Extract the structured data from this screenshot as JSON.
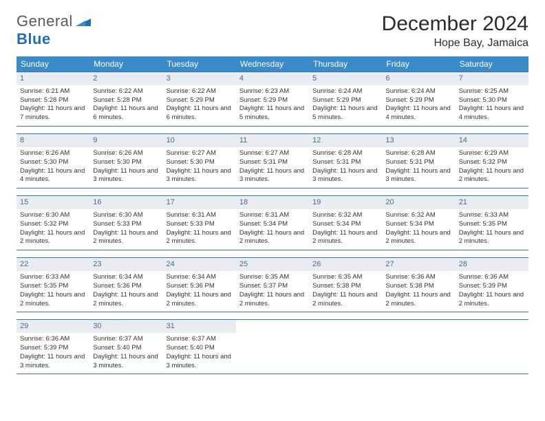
{
  "logo": {
    "word1": "General",
    "word2": "Blue"
  },
  "title": "December 2024",
  "location": "Hope Bay, Jamaica",
  "colors": {
    "header_bg": "#3a8bc9",
    "header_text": "#ffffff",
    "daynum_bg": "#e9edf1",
    "daynum_text": "#4a6a8a",
    "week_border": "#3a6ea5",
    "logo_gray": "#5a5a5a",
    "logo_blue": "#1f6fb2"
  },
  "days_of_week": [
    "Sunday",
    "Monday",
    "Tuesday",
    "Wednesday",
    "Thursday",
    "Friday",
    "Saturday"
  ],
  "weeks": [
    [
      {
        "n": "1",
        "sunrise": "Sunrise: 6:21 AM",
        "sunset": "Sunset: 5:28 PM",
        "daylight": "Daylight: 11 hours and 7 minutes."
      },
      {
        "n": "2",
        "sunrise": "Sunrise: 6:22 AM",
        "sunset": "Sunset: 5:28 PM",
        "daylight": "Daylight: 11 hours and 6 minutes."
      },
      {
        "n": "3",
        "sunrise": "Sunrise: 6:22 AM",
        "sunset": "Sunset: 5:29 PM",
        "daylight": "Daylight: 11 hours and 6 minutes."
      },
      {
        "n": "4",
        "sunrise": "Sunrise: 6:23 AM",
        "sunset": "Sunset: 5:29 PM",
        "daylight": "Daylight: 11 hours and 5 minutes."
      },
      {
        "n": "5",
        "sunrise": "Sunrise: 6:24 AM",
        "sunset": "Sunset: 5:29 PM",
        "daylight": "Daylight: 11 hours and 5 minutes."
      },
      {
        "n": "6",
        "sunrise": "Sunrise: 6:24 AM",
        "sunset": "Sunset: 5:29 PM",
        "daylight": "Daylight: 11 hours and 4 minutes."
      },
      {
        "n": "7",
        "sunrise": "Sunrise: 6:25 AM",
        "sunset": "Sunset: 5:30 PM",
        "daylight": "Daylight: 11 hours and 4 minutes."
      }
    ],
    [
      {
        "n": "8",
        "sunrise": "Sunrise: 6:26 AM",
        "sunset": "Sunset: 5:30 PM",
        "daylight": "Daylight: 11 hours and 4 minutes."
      },
      {
        "n": "9",
        "sunrise": "Sunrise: 6:26 AM",
        "sunset": "Sunset: 5:30 PM",
        "daylight": "Daylight: 11 hours and 3 minutes."
      },
      {
        "n": "10",
        "sunrise": "Sunrise: 6:27 AM",
        "sunset": "Sunset: 5:30 PM",
        "daylight": "Daylight: 11 hours and 3 minutes."
      },
      {
        "n": "11",
        "sunrise": "Sunrise: 6:27 AM",
        "sunset": "Sunset: 5:31 PM",
        "daylight": "Daylight: 11 hours and 3 minutes."
      },
      {
        "n": "12",
        "sunrise": "Sunrise: 6:28 AM",
        "sunset": "Sunset: 5:31 PM",
        "daylight": "Daylight: 11 hours and 3 minutes."
      },
      {
        "n": "13",
        "sunrise": "Sunrise: 6:28 AM",
        "sunset": "Sunset: 5:31 PM",
        "daylight": "Daylight: 11 hours and 3 minutes."
      },
      {
        "n": "14",
        "sunrise": "Sunrise: 6:29 AM",
        "sunset": "Sunset: 5:32 PM",
        "daylight": "Daylight: 11 hours and 2 minutes."
      }
    ],
    [
      {
        "n": "15",
        "sunrise": "Sunrise: 6:30 AM",
        "sunset": "Sunset: 5:32 PM",
        "daylight": "Daylight: 11 hours and 2 minutes."
      },
      {
        "n": "16",
        "sunrise": "Sunrise: 6:30 AM",
        "sunset": "Sunset: 5:33 PM",
        "daylight": "Daylight: 11 hours and 2 minutes."
      },
      {
        "n": "17",
        "sunrise": "Sunrise: 6:31 AM",
        "sunset": "Sunset: 5:33 PM",
        "daylight": "Daylight: 11 hours and 2 minutes."
      },
      {
        "n": "18",
        "sunrise": "Sunrise: 6:31 AM",
        "sunset": "Sunset: 5:34 PM",
        "daylight": "Daylight: 11 hours and 2 minutes."
      },
      {
        "n": "19",
        "sunrise": "Sunrise: 6:32 AM",
        "sunset": "Sunset: 5:34 PM",
        "daylight": "Daylight: 11 hours and 2 minutes."
      },
      {
        "n": "20",
        "sunrise": "Sunrise: 6:32 AM",
        "sunset": "Sunset: 5:34 PM",
        "daylight": "Daylight: 11 hours and 2 minutes."
      },
      {
        "n": "21",
        "sunrise": "Sunrise: 6:33 AM",
        "sunset": "Sunset: 5:35 PM",
        "daylight": "Daylight: 11 hours and 2 minutes."
      }
    ],
    [
      {
        "n": "22",
        "sunrise": "Sunrise: 6:33 AM",
        "sunset": "Sunset: 5:35 PM",
        "daylight": "Daylight: 11 hours and 2 minutes."
      },
      {
        "n": "23",
        "sunrise": "Sunrise: 6:34 AM",
        "sunset": "Sunset: 5:36 PM",
        "daylight": "Daylight: 11 hours and 2 minutes."
      },
      {
        "n": "24",
        "sunrise": "Sunrise: 6:34 AM",
        "sunset": "Sunset: 5:36 PM",
        "daylight": "Daylight: 11 hours and 2 minutes."
      },
      {
        "n": "25",
        "sunrise": "Sunrise: 6:35 AM",
        "sunset": "Sunset: 5:37 PM",
        "daylight": "Daylight: 11 hours and 2 minutes."
      },
      {
        "n": "26",
        "sunrise": "Sunrise: 6:35 AM",
        "sunset": "Sunset: 5:38 PM",
        "daylight": "Daylight: 11 hours and 2 minutes."
      },
      {
        "n": "27",
        "sunrise": "Sunrise: 6:36 AM",
        "sunset": "Sunset: 5:38 PM",
        "daylight": "Daylight: 11 hours and 2 minutes."
      },
      {
        "n": "28",
        "sunrise": "Sunrise: 6:36 AM",
        "sunset": "Sunset: 5:39 PM",
        "daylight": "Daylight: 11 hours and 2 minutes."
      }
    ],
    [
      {
        "n": "29",
        "sunrise": "Sunrise: 6:36 AM",
        "sunset": "Sunset: 5:39 PM",
        "daylight": "Daylight: 11 hours and 3 minutes."
      },
      {
        "n": "30",
        "sunrise": "Sunrise: 6:37 AM",
        "sunset": "Sunset: 5:40 PM",
        "daylight": "Daylight: 11 hours and 3 minutes."
      },
      {
        "n": "31",
        "sunrise": "Sunrise: 6:37 AM",
        "sunset": "Sunset: 5:40 PM",
        "daylight": "Daylight: 11 hours and 3 minutes."
      },
      {
        "n": "",
        "sunrise": "",
        "sunset": "",
        "daylight": ""
      },
      {
        "n": "",
        "sunrise": "",
        "sunset": "",
        "daylight": ""
      },
      {
        "n": "",
        "sunrise": "",
        "sunset": "",
        "daylight": ""
      },
      {
        "n": "",
        "sunrise": "",
        "sunset": "",
        "daylight": ""
      }
    ]
  ]
}
